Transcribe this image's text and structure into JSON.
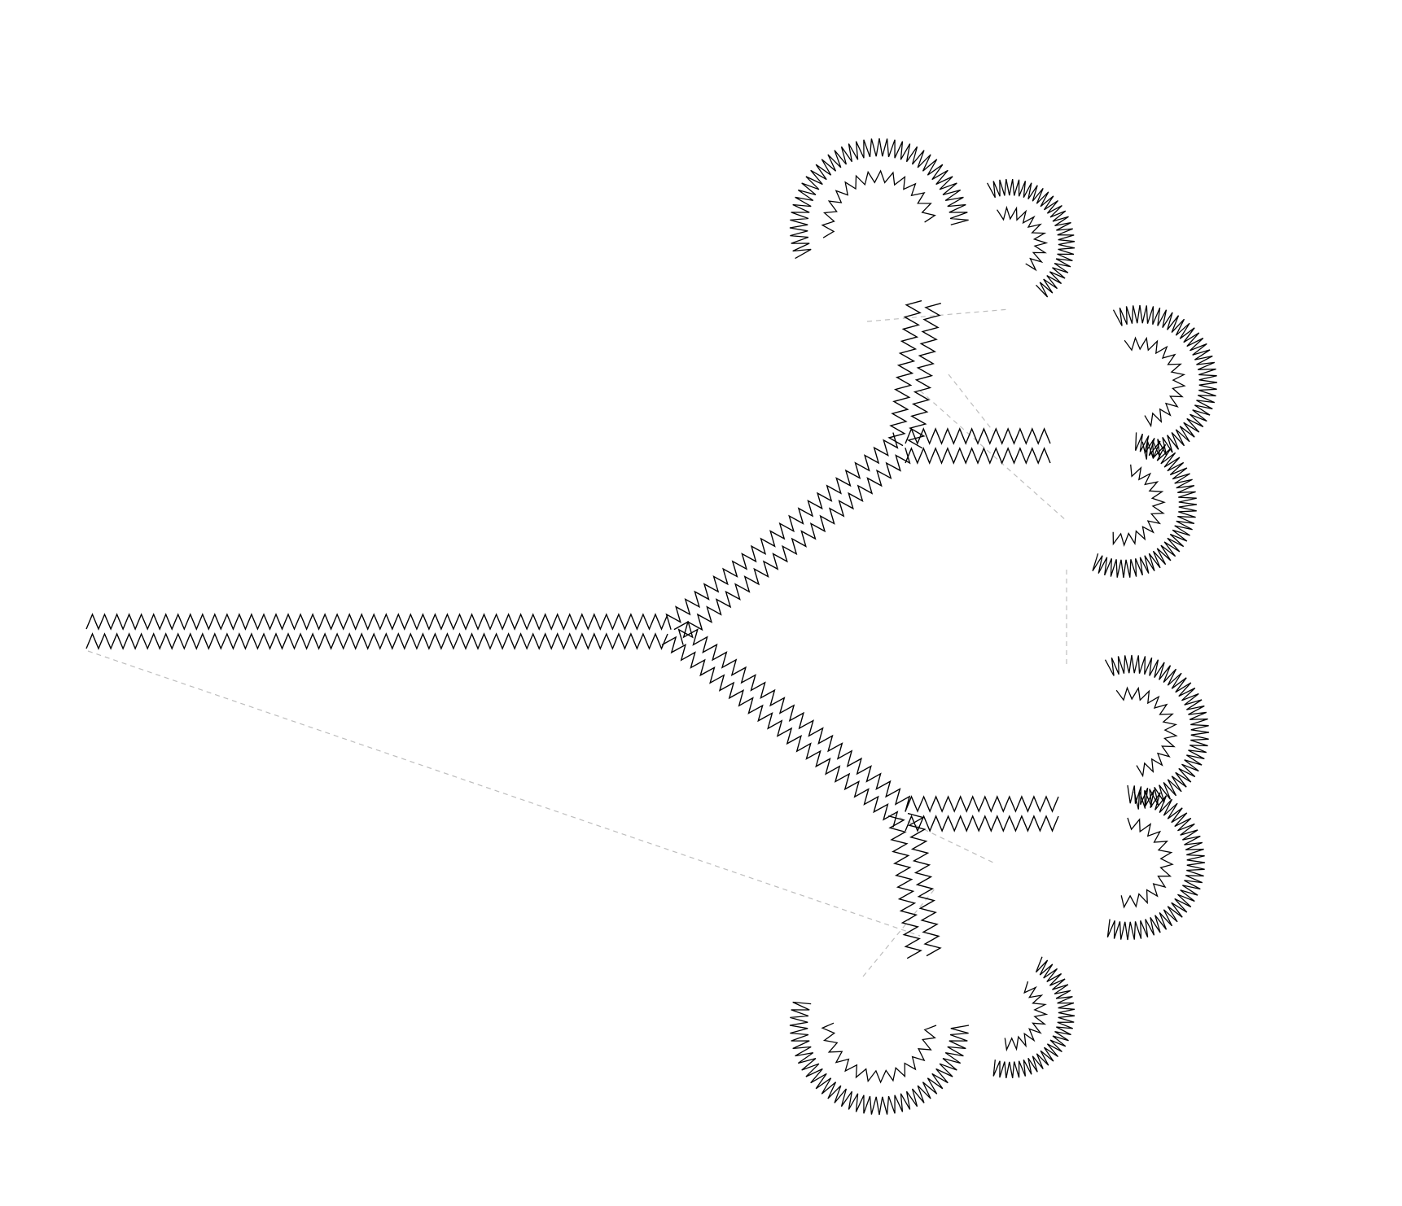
{
  "figure": {
    "subject": "zigzag-stitch-tree-fractal-embroidery-pattern",
    "background_color": "#ffffff",
    "stitch_color": "#000000",
    "jump_stitch_color": "#bdbdbd",
    "shows_jump_stitches": true,
    "visible_text": []
  }
}
